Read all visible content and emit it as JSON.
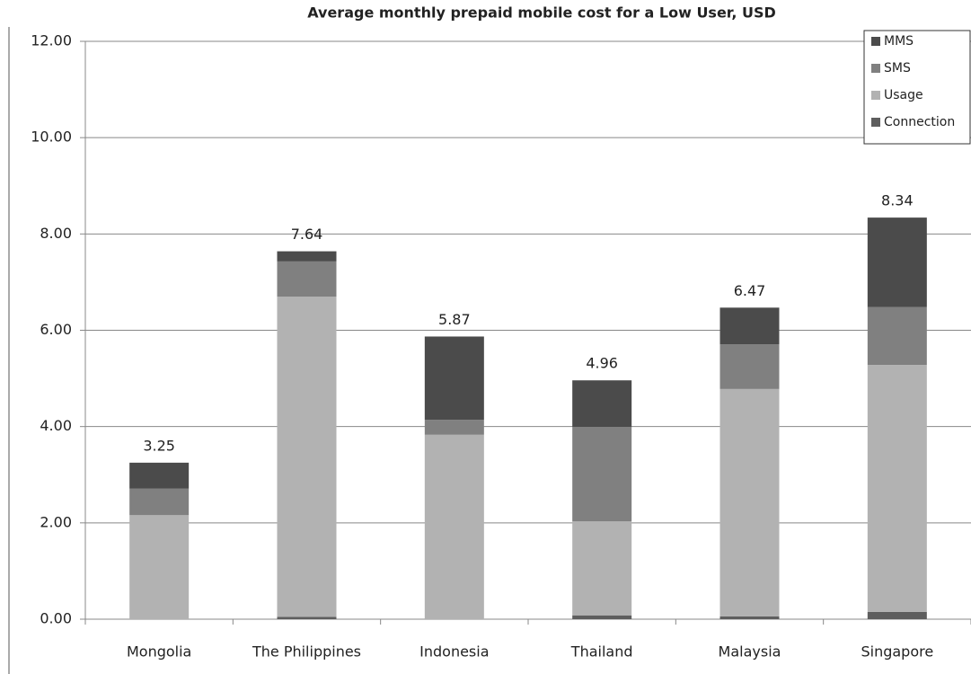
{
  "chart_data": {
    "type": "stacked_bar",
    "title": "Average monthly prepaid mobile cost for a Low User, USD",
    "categories": [
      "Mongolia",
      "The Philippines",
      "Indonesia",
      "Thailand",
      "Malaysia",
      "Singapore"
    ],
    "series": [
      {
        "name": "Connection",
        "color": "#5e5e5e",
        "values": [
          0,
          0.05,
          0,
          0.08,
          0.06,
          0.15
        ]
      },
      {
        "name": "Usage",
        "color": "#b2b2b2",
        "values": [
          2.16,
          6.65,
          3.83,
          1.95,
          4.72,
          5.13
        ]
      },
      {
        "name": "SMS",
        "color": "#808080",
        "values": [
          0.55,
          0.73,
          0.31,
          1.96,
          0.93,
          1.2
        ]
      },
      {
        "name": "MMS",
        "color": "#4b4b4b",
        "values": [
          0.54,
          0.21,
          1.73,
          0.97,
          0.76,
          1.86
        ]
      }
    ],
    "totals": [
      3.25,
      7.64,
      5.87,
      4.96,
      6.47,
      8.34
    ],
    "ylim": [
      0,
      12
    ],
    "yticks": [
      {
        "value": 0,
        "label": "0.00"
      },
      {
        "value": 2,
        "label": "2.00"
      },
      {
        "value": 4,
        "label": "4.00"
      },
      {
        "value": 6,
        "label": "6.00"
      },
      {
        "value": 8,
        "label": "8.00"
      },
      {
        "value": 10,
        "label": "10.00"
      },
      {
        "value": 12,
        "label": "12.00"
      }
    ],
    "grid": true,
    "legend": "top-right"
  }
}
